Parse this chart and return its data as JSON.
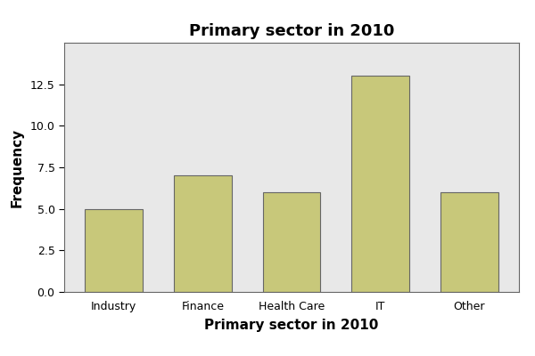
{
  "categories": [
    "Industry",
    "Finance",
    "Health Care",
    "IT",
    "Other"
  ],
  "values": [
    5,
    7,
    6,
    13,
    6
  ],
  "bar_color": "#C8C87A",
  "bar_edgecolor": "#666666",
  "title": "Primary sector in 2010",
  "xlabel": "Primary sector in 2010",
  "ylabel": "Frequency",
  "ylim": [
    0,
    15
  ],
  "yticks": [
    0.0,
    2.5,
    5.0,
    7.5,
    10.0,
    12.5
  ],
  "plot_bg_color": "#E8E8E8",
  "fig_bg_color": "#FFFFFF",
  "title_fontsize": 13,
  "label_fontsize": 11,
  "tick_fontsize": 9,
  "bar_width": 0.65
}
